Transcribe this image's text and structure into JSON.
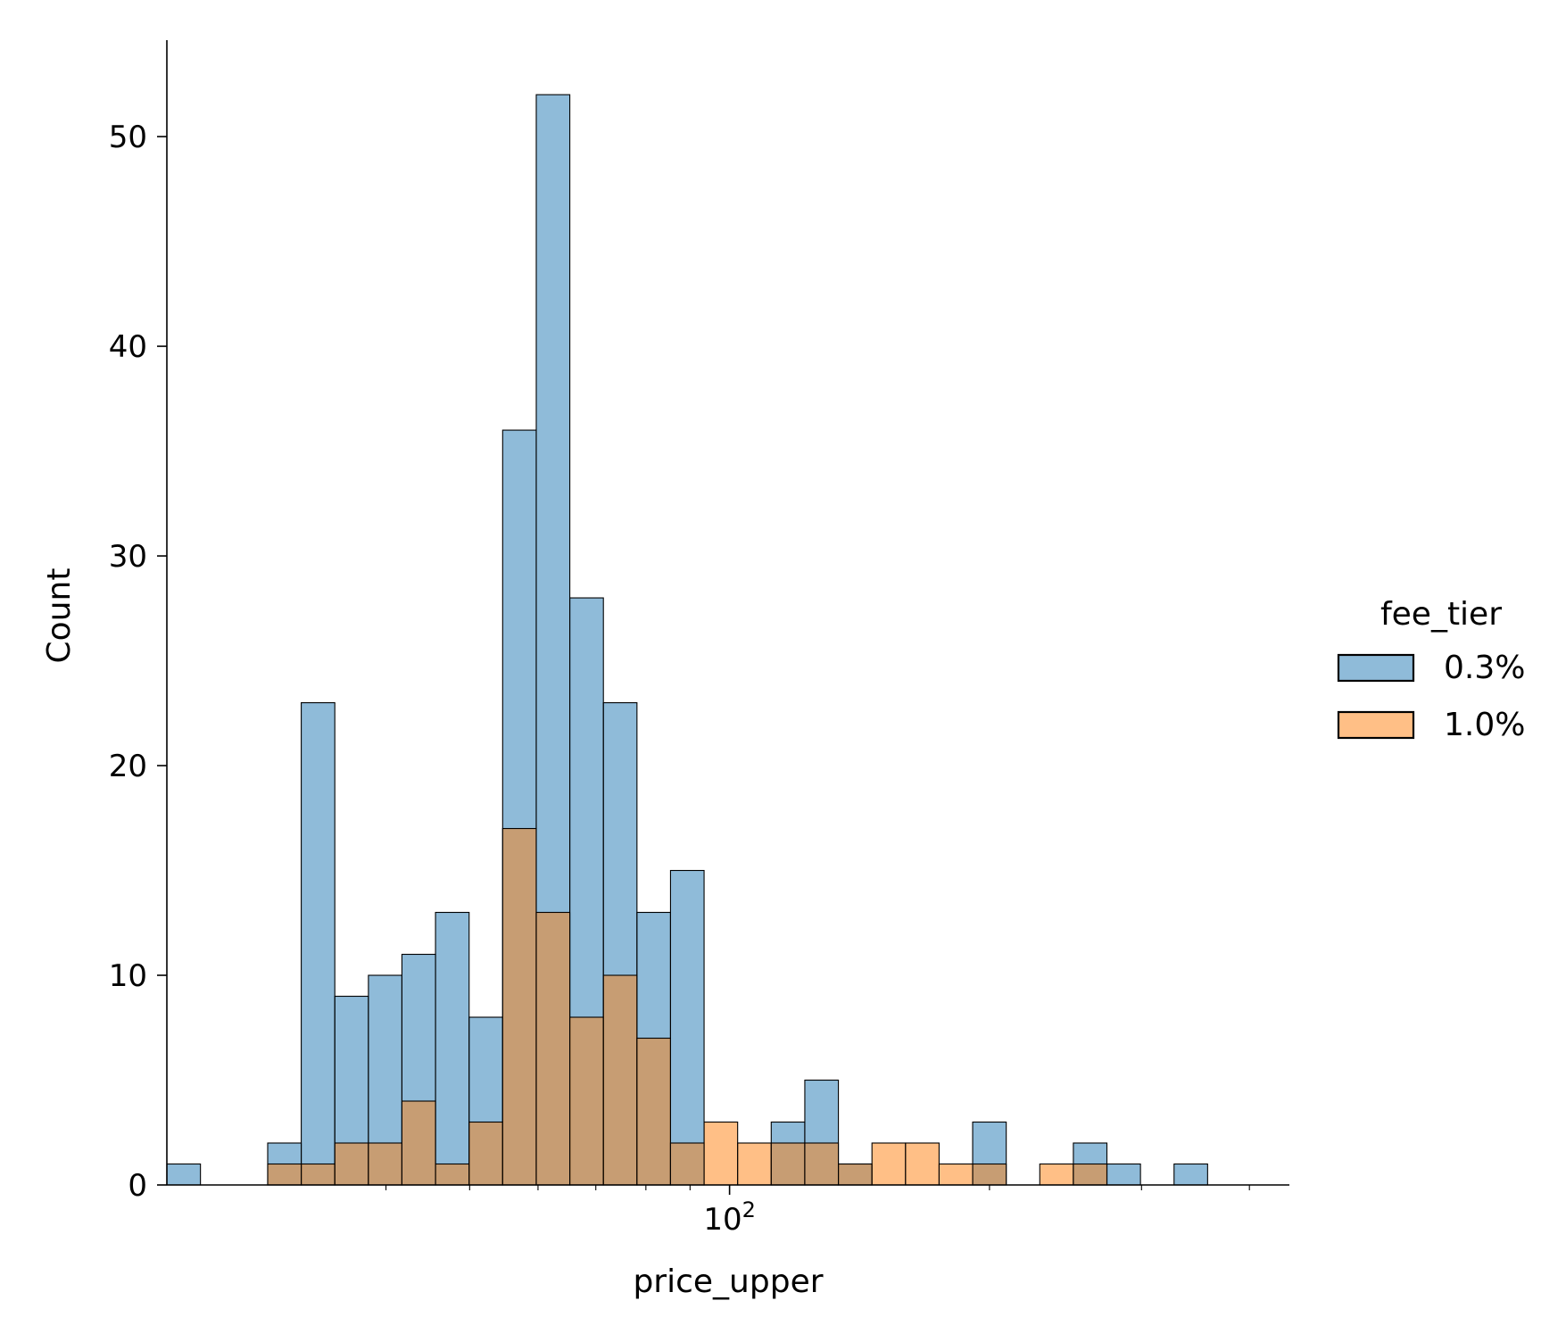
{
  "chart_data": {
    "type": "bar",
    "subtype": "histogram",
    "xscale": "log",
    "xlabel": "price_upper",
    "ylabel": "Count",
    "xlim": [
      22.3,
      445
    ],
    "ylim": [
      0,
      54.6
    ],
    "yticks": [
      0,
      10,
      20,
      30,
      40,
      50
    ],
    "xticks": [
      {
        "value": 100,
        "base": "10",
        "exponent": "2"
      }
    ],
    "x_minor_ticks": [
      40,
      50,
      60,
      70,
      80,
      90,
      200,
      300,
      400
    ],
    "bin_edges": [
      22.3,
      24.39,
      26.68,
      29.18,
      31.91,
      34.9,
      38.17,
      41.74,
      45.65,
      49.93,
      54.6,
      59.72,
      65.31,
      71.43,
      78.12,
      85.43,
      93.43,
      102.18,
      111.75,
      122.22,
      133.67,
      146.19,
      159.88,
      174.85,
      191.22,
      209.13,
      228.71,
      250.13,
      273.55,
      299.16,
      327.18,
      357.81,
      391.32,
      427.96,
      468.04
    ],
    "series": [
      {
        "name": "0.3%",
        "color": "#1f77b4",
        "counts": [
          1,
          0,
          0,
          2,
          23,
          9,
          10,
          11,
          13,
          8,
          36,
          52,
          28,
          23,
          13,
          15,
          0,
          0,
          3,
          5,
          1,
          0,
          0,
          0,
          3,
          0,
          0,
          2,
          1,
          0,
          1,
          0,
          0,
          0
        ]
      },
      {
        "name": "1.0%",
        "color": "#ff7f0e",
        "counts": [
          0,
          0,
          0,
          1,
          1,
          2,
          2,
          4,
          1,
          3,
          17,
          13,
          8,
          10,
          7,
          2,
          3,
          2,
          2,
          2,
          1,
          2,
          2,
          1,
          1,
          0,
          1,
          1,
          0,
          0,
          0,
          0,
          0,
          0
        ]
      }
    ],
    "legend": {
      "title": "fee_tier",
      "position": "outside-right"
    },
    "grid": false
  }
}
